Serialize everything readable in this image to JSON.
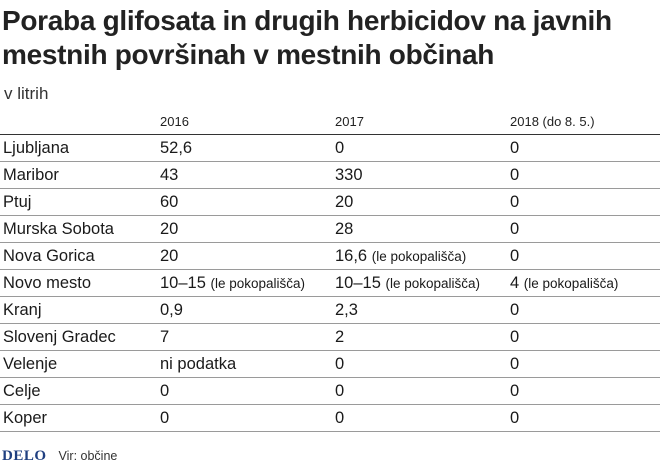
{
  "chart_data": {
    "type": "table",
    "title": "Poraba glifosata in drugih herbicidov na javnih mestnih površinah v mestnih občinah",
    "subtitle": "v litrih",
    "columns": [
      "",
      "2016",
      "2017",
      "2018 (do 8. 5.)"
    ],
    "rows": [
      {
        "name": "Ljubljana",
        "cells": [
          {
            "value": "52,6",
            "note": ""
          },
          {
            "value": "0",
            "note": ""
          },
          {
            "value": "0",
            "note": ""
          }
        ]
      },
      {
        "name": "Maribor",
        "cells": [
          {
            "value": "43",
            "note": ""
          },
          {
            "value": "330",
            "note": ""
          },
          {
            "value": "0",
            "note": ""
          }
        ]
      },
      {
        "name": "Ptuj",
        "cells": [
          {
            "value": "60",
            "note": ""
          },
          {
            "value": "20",
            "note": ""
          },
          {
            "value": "0",
            "note": ""
          }
        ]
      },
      {
        "name": "Murska Sobota",
        "cells": [
          {
            "value": "20",
            "note": ""
          },
          {
            "value": "28",
            "note": ""
          },
          {
            "value": "0",
            "note": ""
          }
        ]
      },
      {
        "name": "Nova Gorica",
        "cells": [
          {
            "value": "20",
            "note": ""
          },
          {
            "value": "16,6",
            "note": "(le pokopališča)"
          },
          {
            "value": "0",
            "note": ""
          }
        ]
      },
      {
        "name": "Novo mesto",
        "cells": [
          {
            "value": "10–15",
            "note": "(le pokopališča)"
          },
          {
            "value": "10–15",
            "note": "(le pokopališča)"
          },
          {
            "value": "4",
            "note": "(le pokopališča)"
          }
        ]
      },
      {
        "name": "Kranj",
        "cells": [
          {
            "value": "0,9",
            "note": ""
          },
          {
            "value": "2,3",
            "note": ""
          },
          {
            "value": "0",
            "note": ""
          }
        ]
      },
      {
        "name": "Slovenj Gradec",
        "cells": [
          {
            "value": "7",
            "note": ""
          },
          {
            "value": "2",
            "note": ""
          },
          {
            "value": "0",
            "note": ""
          }
        ]
      },
      {
        "name": "Velenje",
        "cells": [
          {
            "value": "ni podatka",
            "note": ""
          },
          {
            "value": "0",
            "note": ""
          },
          {
            "value": "0",
            "note": ""
          }
        ]
      },
      {
        "name": "Celje",
        "cells": [
          {
            "value": "0",
            "note": ""
          },
          {
            "value": "0",
            "note": ""
          },
          {
            "value": "0",
            "note": ""
          }
        ]
      },
      {
        "name": "Koper",
        "cells": [
          {
            "value": "0",
            "note": ""
          },
          {
            "value": "0",
            "note": ""
          },
          {
            "value": "0",
            "note": ""
          }
        ]
      }
    ],
    "footer": {
      "logo": "DELO",
      "source": "Vir: občine"
    },
    "colors": {
      "logo": "#1f3f80",
      "text": "#1a1a1a"
    }
  }
}
